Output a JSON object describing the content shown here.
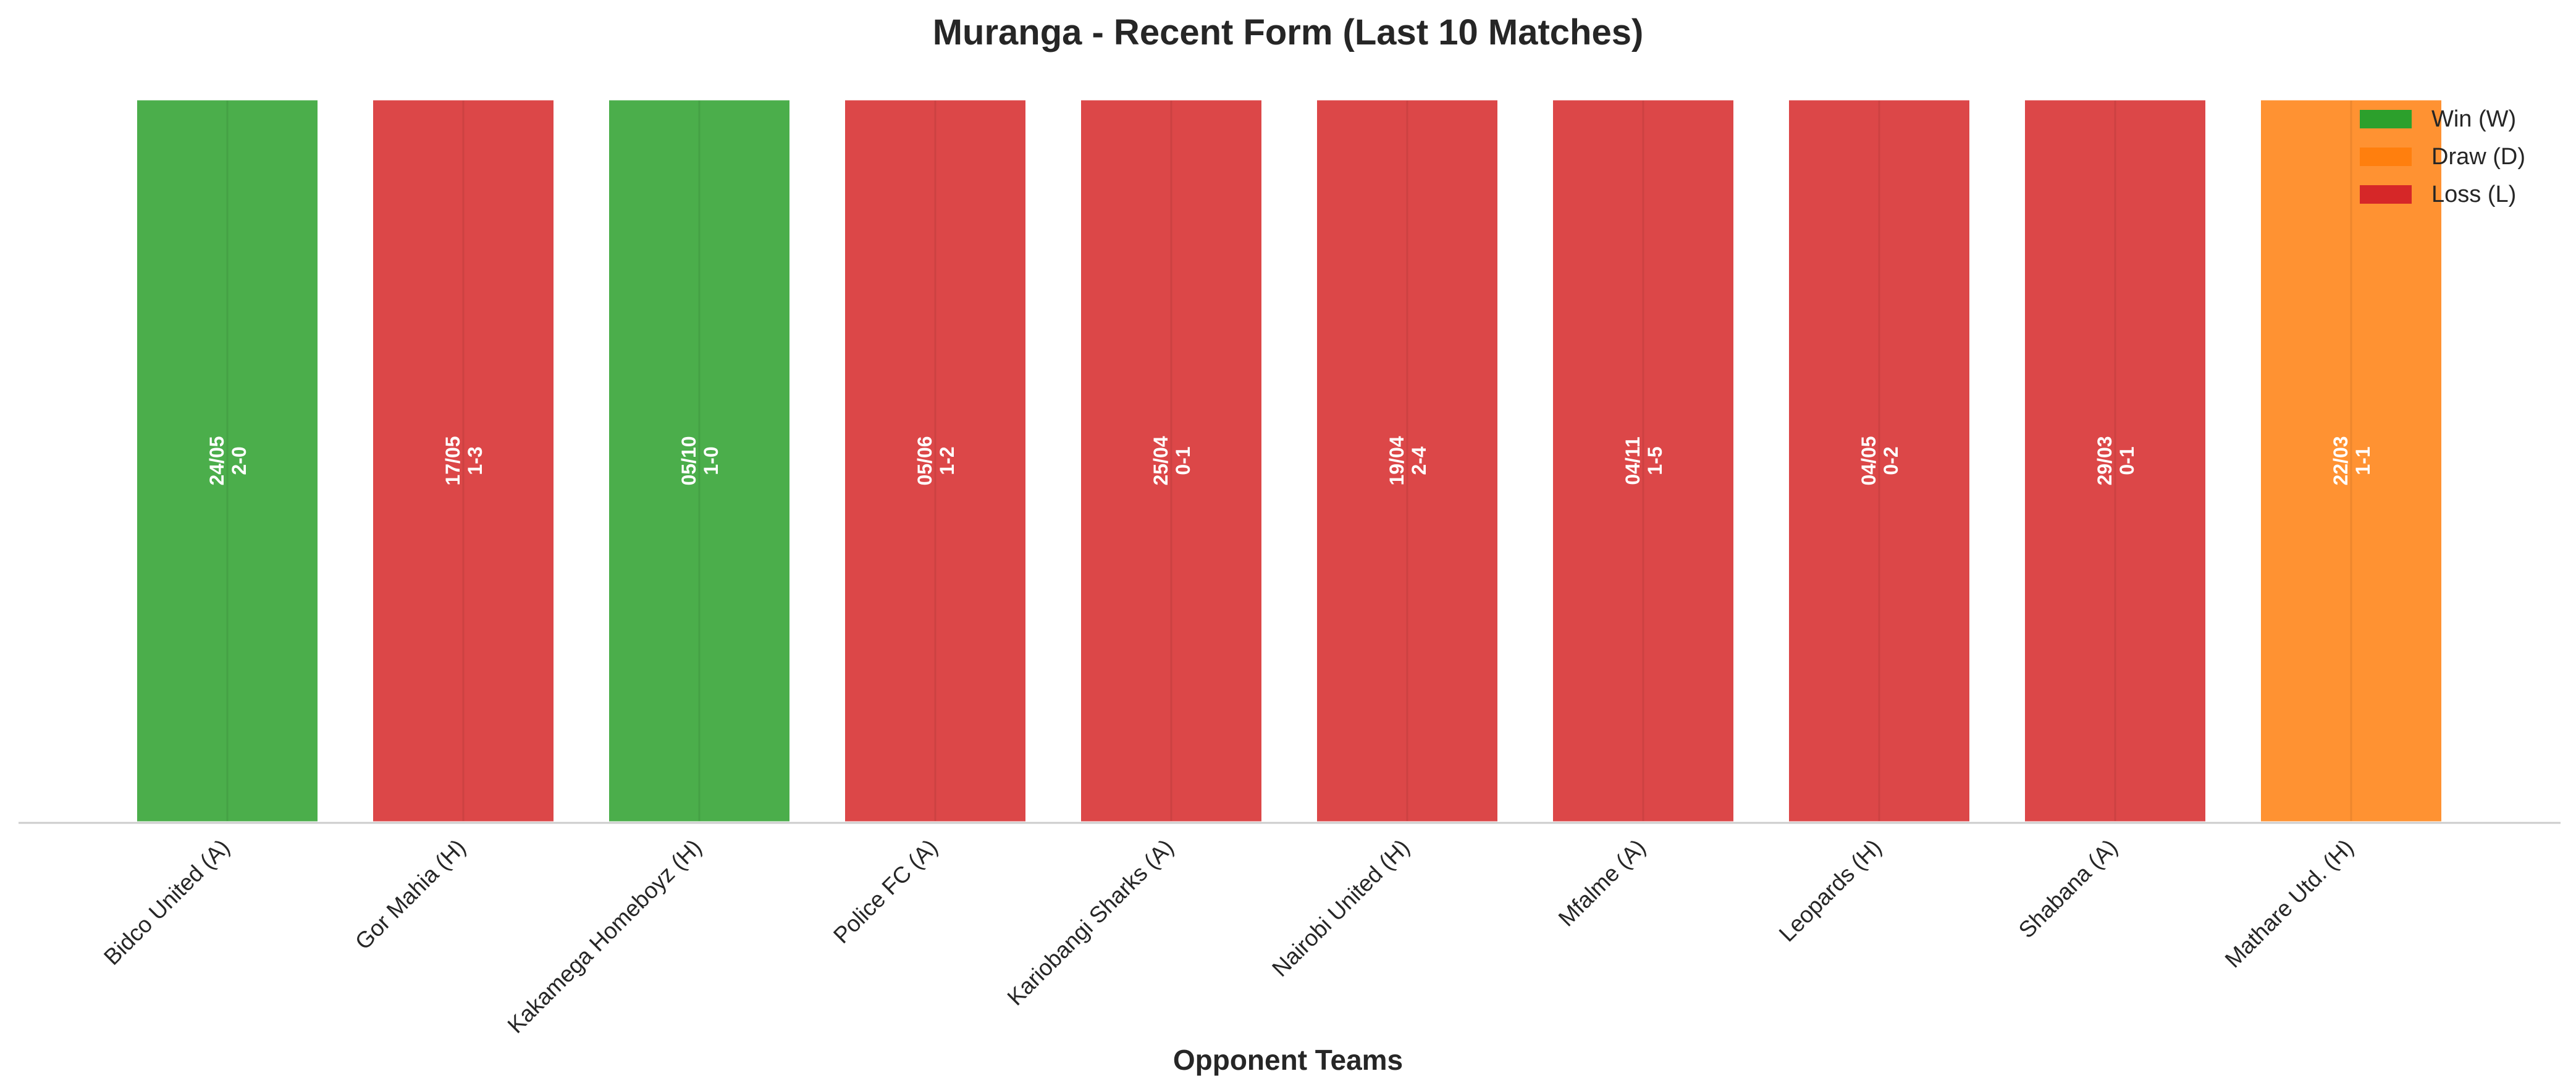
{
  "chart_data": {
    "type": "bar",
    "title": "Muranga - Recent Form (Last 10 Matches)",
    "xlabel": "Opponent Teams",
    "ylabel": "",
    "ylim": [
      0,
      1
    ],
    "grid": false,
    "legend_position": "top-right",
    "categories": [
      "Bidco United (A)",
      "Gor Mahia (H)",
      "Kakamega Homeboyz (H)",
      "Police FC (A)",
      "Kariobangi Sharks (A)",
      "Nairobi United (H)",
      "Mfalme (A)",
      "Leopards (H)",
      "Shabana (A)",
      "Mathare Utd. (H)"
    ],
    "values": [
      1,
      1,
      1,
      1,
      1,
      1,
      1,
      1,
      1,
      1
    ],
    "results": [
      "W",
      "L",
      "W",
      "L",
      "L",
      "L",
      "L",
      "L",
      "L",
      "D"
    ],
    "dates": [
      "24/05",
      "17/05",
      "05/10",
      "05/06",
      "25/04",
      "19/04",
      "04/11",
      "04/05",
      "29/03",
      "22/03"
    ],
    "scores": [
      "2-0",
      "1-3",
      "1-0",
      "1-2",
      "0-1",
      "2-4",
      "1-5",
      "0-2",
      "0-1",
      "1-1"
    ],
    "legend": [
      {
        "key": "W",
        "label": "Win (W)",
        "color": "#2ca02c"
      },
      {
        "key": "D",
        "label": "Draw (D)",
        "color": "#ff7f0e"
      },
      {
        "key": "L",
        "label": "Loss (L)",
        "color": "#d62728"
      }
    ]
  }
}
